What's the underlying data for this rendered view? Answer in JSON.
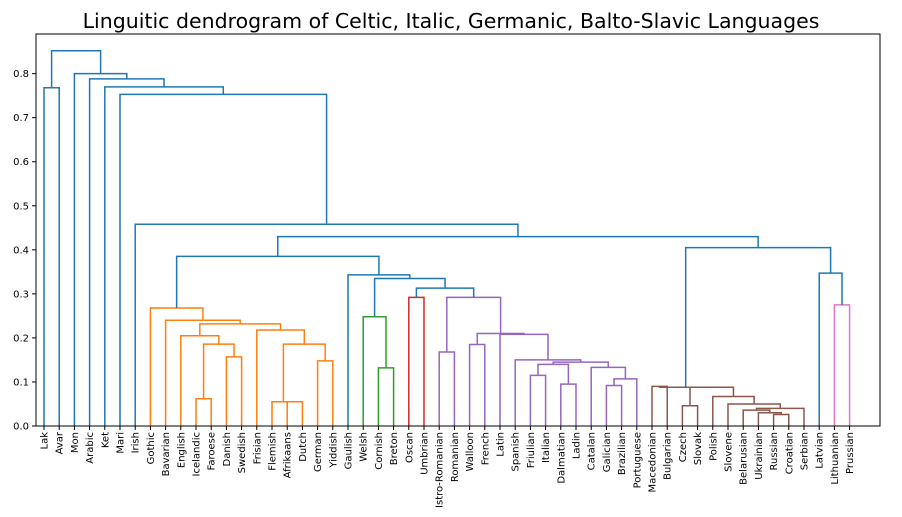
{
  "chart_data": {
    "type": "dendrogram",
    "title": "Linguitic dendrogram of Celtic, Italic, Germanic, Balto-Slavic Languages",
    "xlabel": "",
    "ylabel": "",
    "ylim": [
      0,
      0.89
    ],
    "y_ticks": [
      0.0,
      0.1,
      0.2,
      0.3,
      0.4,
      0.5,
      0.6,
      0.7,
      0.8
    ],
    "grid": false,
    "leaves": [
      "Lak",
      "Avar",
      "Mon",
      "Arabic",
      "Ket",
      "Mari",
      "Irish",
      "Gothic",
      "Bavarian",
      "English",
      "Icelandic",
      "Faroese",
      "Danish",
      "Swedish",
      "Frisian",
      "Flemish",
      "Afrikaans",
      "Dutch",
      "German",
      "Yiddish",
      "Gaulish",
      "Welsh",
      "Cornish",
      "Breton",
      "Oscan",
      "Umbrian",
      "Istro-Romanian",
      "Romanian",
      "Walloon",
      "French",
      "Latin",
      "Spanish",
      "Friulian",
      "Italian",
      "Dalmatian",
      "Ladin",
      "Catalan",
      "Galician",
      "Brazilian",
      "Portuguese",
      "Macedonian",
      "Bulgarian",
      "Czech",
      "Slovak",
      "Polish",
      "Slovene",
      "Belarusian",
      "Ukrainian",
      "Russian",
      "Croatian",
      "Serbian",
      "Latvian",
      "Lithuanian",
      "Prussian"
    ],
    "merges": [
      {
        "a": "Lak",
        "b": "Avar",
        "height": 0.768,
        "color": "#1f77b4"
      },
      {
        "a": "Afrikaans",
        "b": "Dutch",
        "height": 0.055,
        "color": "#ff7f0e"
      },
      {
        "a": "Flemish",
        "b": "Afrikaans+Dutch",
        "height": 0.028,
        "color": "#ff7f0e"
      },
      {
        "a": "German",
        "b": "Yiddish",
        "height": 0.148,
        "color": "#ff7f0e"
      },
      {
        "a": "Flemish+Afrikaans+Dutch",
        "b": "German+Yiddish",
        "height": 0.186,
        "color": "#ff7f0e"
      },
      {
        "a": "Frisian",
        "b": "Flemish..Yiddish",
        "height": 0.218,
        "color": "#ff7f0e"
      },
      {
        "a": "Icelandic",
        "b": "Faroese",
        "height": 0.062,
        "color": "#ff7f0e"
      },
      {
        "a": "Danish",
        "b": "Swedish",
        "height": 0.157,
        "color": "#ff7f0e"
      },
      {
        "a": "Icelandic+Faroese",
        "b": "Danish+Swedish",
        "height": 0.186,
        "color": "#ff7f0e"
      },
      {
        "a": "English",
        "b": "Icelandic..Swedish",
        "height": 0.205,
        "color": "#ff7f0e"
      },
      {
        "a": "English..Swedish",
        "b": "Frisian..Yiddish",
        "height": 0.232,
        "color": "#ff7f0e"
      },
      {
        "a": "Bavarian",
        "b": "English..Yiddish",
        "height": 0.24,
        "color": "#ff7f0e"
      },
      {
        "a": "Gothic",
        "b": "Bavarian..Yiddish",
        "height": 0.268,
        "color": "#ff7f0e"
      },
      {
        "a": "Cornish",
        "b": "Breton",
        "height": 0.132,
        "color": "#2ca02c"
      },
      {
        "a": "Welsh",
        "b": "Cornish+Breton",
        "height": 0.248,
        "color": "#2ca02c"
      },
      {
        "a": "Oscan",
        "b": "Umbrian",
        "height": 0.292,
        "color": "#d62728"
      },
      {
        "a": "Istro-Romanian",
        "b": "Romanian",
        "height": 0.168,
        "color": "#9467bd"
      },
      {
        "a": "Walloon",
        "b": "French",
        "height": 0.185,
        "color": "#9467bd"
      },
      {
        "a": "Friulian",
        "b": "Italian",
        "height": 0.115,
        "color": "#9467bd"
      },
      {
        "a": "Dalmatian",
        "b": "Ladin",
        "height": 0.095,
        "color": "#9467bd"
      },
      {
        "a": "Galician",
        "b": "Brazilian",
        "height": 0.092,
        "color": "#9467bd"
      },
      {
        "a": "Galician+Brazilian",
        "b": "Portuguese",
        "height": 0.107,
        "color": "#9467bd"
      },
      {
        "a": "Catalan",
        "b": "Galician..Portuguese",
        "height": 0.133,
        "color": "#9467bd"
      },
      {
        "a": "Friulian+Italian",
        "b": "Dalmatian+Ladin",
        "height": 0.14,
        "color": "#9467bd"
      },
      {
        "a": "Friulian..Ladin",
        "b": "Catalan..Portuguese",
        "height": 0.145,
        "color": "#9467bd"
      },
      {
        "a": "Spanish",
        "b": "Friulian..Portuguese",
        "height": 0.15,
        "color": "#9467bd"
      },
      {
        "a": "Latin",
        "b": "Spanish..Portuguese",
        "height": 0.208,
        "color": "#9467bd"
      },
      {
        "a": "Walloon+French",
        "b": "Latin..Portuguese",
        "height": 0.21,
        "color": "#9467bd"
      },
      {
        "a": "Istro-Romanian+Romanian",
        "b": "Walloon..Portuguese",
        "height": 0.292,
        "color": "#9467bd"
      },
      {
        "a": "Czech",
        "b": "Slovak",
        "height": 0.046,
        "color": "#8c564b"
      },
      {
        "a": "Russian",
        "b": "Croatian",
        "height": 0.026,
        "color": "#8c564b"
      },
      {
        "a": "Ukrainian",
        "b": "Russian+Croatian",
        "height": 0.03,
        "color": "#8c564b"
      },
      {
        "a": "Belarusian",
        "b": "Ukrainian..Croatian",
        "height": 0.036,
        "color": "#8c564b"
      },
      {
        "a": "Serbian",
        "b": "Belarusian..Croatian",
        "height": 0.04,
        "color": "#8c564b"
      },
      {
        "a": "Slovene",
        "b": "Belarusian..Serbian",
        "height": 0.05,
        "color": "#8c564b"
      },
      {
        "a": "Polish",
        "b": "Slovene..Serbian",
        "height": 0.067,
        "color": "#8c564b"
      },
      {
        "a": "Czech+Slovak",
        "b": "Polish..Serbian",
        "height": 0.088,
        "color": "#8c564b"
      },
      {
        "a": "Macedonian",
        "b": "Bulgarian",
        "height": 0.09,
        "color": "#8c564b"
      },
      {
        "a": "Macedonian+Bulgarian",
        "b": "Czech..Serbian",
        "height": 0.088,
        "color": "#8c564b"
      },
      {
        "a": "Lithuanian",
        "b": "Prussian",
        "height": 0.275,
        "color": "#e377c2"
      },
      {
        "a": "Latvian",
        "b": "Lithuanian+Prussian",
        "height": 0.347,
        "color": "#1f77b4"
      },
      {
        "a": "Slavic",
        "b": "Baltic",
        "height": 0.405,
        "color": "#1f77b4"
      },
      {
        "a": "Oscan+Umbrian",
        "b": "Romance",
        "height": 0.313,
        "color": "#1f77b4"
      },
      {
        "a": "Italic",
        "b": "Welsh..Breton",
        "height": 0.335,
        "color": "#1f77b4"
      },
      {
        "a": "Gaulish",
        "b": "Welsh..Portuguese",
        "height": 0.343,
        "color": "#1f77b4"
      },
      {
        "a": "Germanic",
        "b": "Celtic+Italic",
        "height": 0.385,
        "color": "#1f77b4"
      },
      {
        "a": "Germanic..Italic",
        "b": "Balto-Slavic",
        "height": 0.43,
        "color": "#1f77b4"
      },
      {
        "a": "Irish",
        "b": "Gothic..Prussian",
        "height": 0.458,
        "color": "#1f77b4"
      },
      {
        "a": "Mari",
        "b": "Irish..Prussian",
        "height": 0.753,
        "color": "#1f77b4"
      },
      {
        "a": "Ket",
        "b": "Mari..Prussian",
        "height": 0.77,
        "color": "#1f77b4"
      },
      {
        "a": "Arabic",
        "b": "Ket..Prussian",
        "height": 0.788,
        "color": "#1f77b4"
      },
      {
        "a": "Mon",
        "b": "Arabic..Prussian",
        "height": 0.8,
        "color": "#1f77b4"
      },
      {
        "a": "Lak+Avar",
        "b": "Mon..Prussian",
        "height": 0.852,
        "color": "#1f77b4"
      }
    ]
  }
}
